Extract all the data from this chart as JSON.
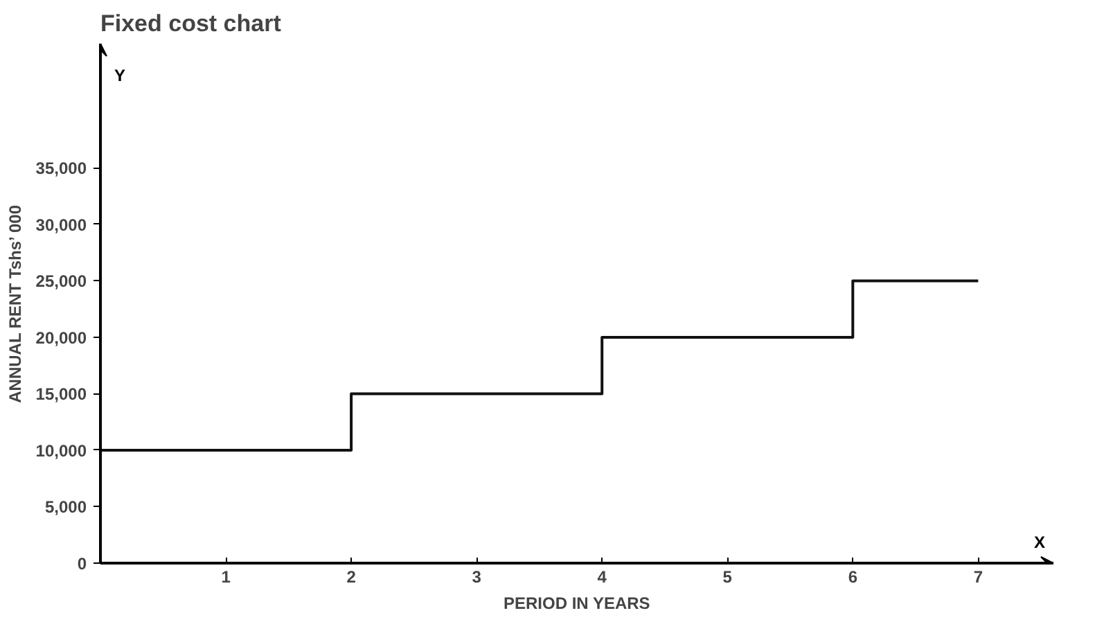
{
  "chart_data": {
    "type": "step",
    "title": "Fixed cost chart",
    "xlabel": "PERIOD IN YEARS",
    "ylabel": "ANNUAL RENT Tshs’ 000",
    "x": [
      0,
      2,
      4,
      6,
      7
    ],
    "values": [
      10000,
      15000,
      20000,
      25000,
      25000
    ],
    "color": "#111111",
    "xlim": [
      0,
      7.6
    ],
    "ylim": [
      0,
      46000
    ],
    "xticks": [
      1,
      2,
      3,
      4,
      5,
      6,
      7
    ],
    "yticks": [
      {
        "value": 0,
        "label": "0"
      },
      {
        "value": 5000,
        "label": "5,000"
      },
      {
        "value": 10000,
        "label": "10,000"
      },
      {
        "value": 15000,
        "label": "15,000"
      },
      {
        "value": 20000,
        "label": "20,000"
      },
      {
        "value": 25000,
        "label": "25,000"
      },
      {
        "value": 30000,
        "label": "30,000"
      },
      {
        "value": 35000,
        "label": "35,000"
      }
    ],
    "annotations": [
      "Y",
      "X"
    ],
    "grid": false
  }
}
